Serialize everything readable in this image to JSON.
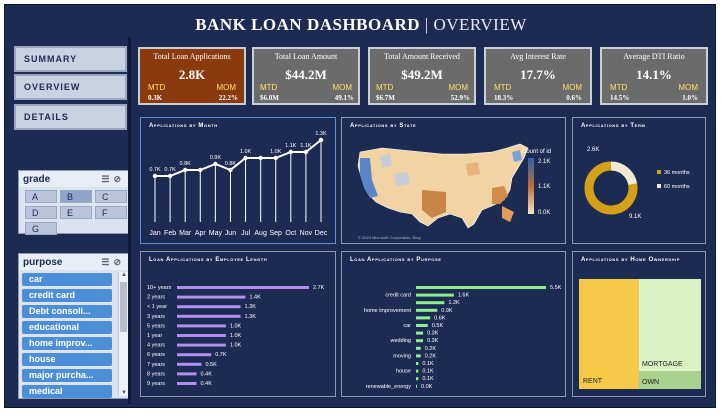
{
  "header": {
    "title": "BANK LOAN DASHBOARD",
    "separator": "|",
    "subtitle": "OVERVIEW"
  },
  "nav": [
    "SUMMARY",
    "OVERVIEW",
    "DETAILS"
  ],
  "grade_slicer": {
    "title": "grade",
    "items": [
      "A",
      "B",
      "C",
      "D",
      "E",
      "F",
      "G"
    ],
    "selected": "B"
  },
  "purpose_slicer": {
    "title": "purpose",
    "items": [
      "car",
      "credit card",
      "Debt consoli...",
      "educational",
      "home improv...",
      "house",
      "major purcha...",
      "medical"
    ]
  },
  "kpis": [
    {
      "title": "Total Loan Applications",
      "value": "2.8K",
      "mtd_label": "MTD",
      "mom_label": "MOM",
      "mtd": "0.3K",
      "mom": "22.2%",
      "color": "#8b3a0e"
    },
    {
      "title": "Total Loan Amount",
      "value": "$44.2M",
      "mtd_label": "MTD",
      "mom_label": "MOM",
      "mtd": "$6.0M",
      "mom": "49.1%",
      "color": "#6b6b6b"
    },
    {
      "title": "Total Amount Received",
      "value": "$49.2M",
      "mtd_label": "MTD",
      "mom_label": "MOM",
      "mtd": "$6.7M",
      "mom": "52.9%",
      "color": "#6b6b6b"
    },
    {
      "title": "Avg Interest Rate",
      "value": "17.7%",
      "mtd_label": "MTD",
      "mom_label": "MOM",
      "mtd": "18.3%",
      "mom": "0.6%",
      "color": "#6b6b6b"
    },
    {
      "title": "Average DTI Ratio",
      "value": "14.1%",
      "mtd_label": "MTD",
      "mom_label": "MOM",
      "mtd": "14.5%",
      "mom": "1.0%",
      "color": "#6b6b6b"
    }
  ],
  "panels": {
    "by_month": "Applications by Month",
    "by_state": "Applications by State",
    "by_term": "Applications by Term",
    "by_emp": "Loan Applications by Employee Length",
    "by_purpose": "Loan Applications by Purpose",
    "by_home": "Applications by Home Ownership"
  },
  "map": {
    "legend_title": "Count of id",
    "legend_ticks": [
      "2.1K",
      "1.1K",
      "0.0K"
    ],
    "credit": "© 2024 Microsoft Corporation, Bing"
  },
  "treemap": {
    "labels": [
      "RENT",
      "MORTGAGE",
      "OWN"
    ]
  },
  "chart_data": [
    {
      "type": "line",
      "title": "Applications by Month",
      "categories": [
        "Jan",
        "Feb",
        "Mar",
        "Apr",
        "May",
        "Jun",
        "Jul",
        "Aug",
        "Sep",
        "Oct",
        "Nov",
        "Dec"
      ],
      "values": [
        0.7,
        0.7,
        0.8,
        0.8,
        0.9,
        0.8,
        1.0,
        1.0,
        1.0,
        1.1,
        1.1,
        1.3
      ],
      "labels": [
        "0.7K",
        "0.7K",
        "0.8K",
        "",
        "0.9K",
        "0.8K",
        "1.0K",
        "",
        "1.0K",
        "1.1K",
        "1.1K",
        "1.3K"
      ],
      "color": "#ffffff"
    },
    {
      "type": "pie",
      "title": "Applications by Term",
      "categories": [
        "36 months",
        "60 months"
      ],
      "values": [
        9.1,
        2.6
      ],
      "labels": [
        "9.1K",
        "2.6K"
      ],
      "colors": [
        "#d4a017",
        "#f2ead0"
      ]
    },
    {
      "type": "bar",
      "title": "Loan Applications by Employee Length",
      "categories": [
        "10+ years",
        "2 years",
        "< 1 year",
        "3 years",
        "5 years",
        "1 year",
        "4 years",
        "6 years",
        "7 years",
        "8 years",
        "9 years"
      ],
      "values": [
        2.7,
        1.4,
        1.3,
        1.3,
        1.0,
        1.0,
        1.0,
        0.7,
        0.5,
        0.4,
        0.4
      ],
      "labels": [
        "2.7K",
        "1.4K",
        "1.3K",
        "1.3K",
        "1.0K",
        "1.0K",
        "1.0K",
        "0.7K",
        "0.5K",
        "0.4K",
        "0.4K"
      ],
      "color": "#b58cf0"
    },
    {
      "type": "bar",
      "title": "Loan Applications by Purpose",
      "categories": [
        "",
        "credit card",
        "",
        "home improvement",
        "",
        "car",
        "",
        "wedding",
        "",
        "moving",
        "",
        "house",
        "",
        "renewable_energy"
      ],
      "values": [
        5.5,
        1.6,
        1.2,
        0.9,
        0.6,
        0.5,
        0.3,
        0.3,
        0.2,
        0.2,
        0.1,
        0.1,
        0.1,
        0.0
      ],
      "labels": [
        "5.5K",
        "1.6K",
        "1.2K",
        "0.9K",
        "0.6K",
        "0.5K",
        "0.3K",
        "0.3K",
        "0.2K",
        "0.2K",
        "0.1K",
        "0.1K",
        "0.1K",
        "0.0K"
      ],
      "color": "#90ee90"
    },
    {
      "type": "heatmap",
      "title": "Applications by Home Ownership",
      "categories": [
        "RENT",
        "MORTGAGE",
        "OWN"
      ],
      "colors": [
        "#f7c948",
        "#d9f2c4",
        "#a9d18e"
      ]
    }
  ]
}
